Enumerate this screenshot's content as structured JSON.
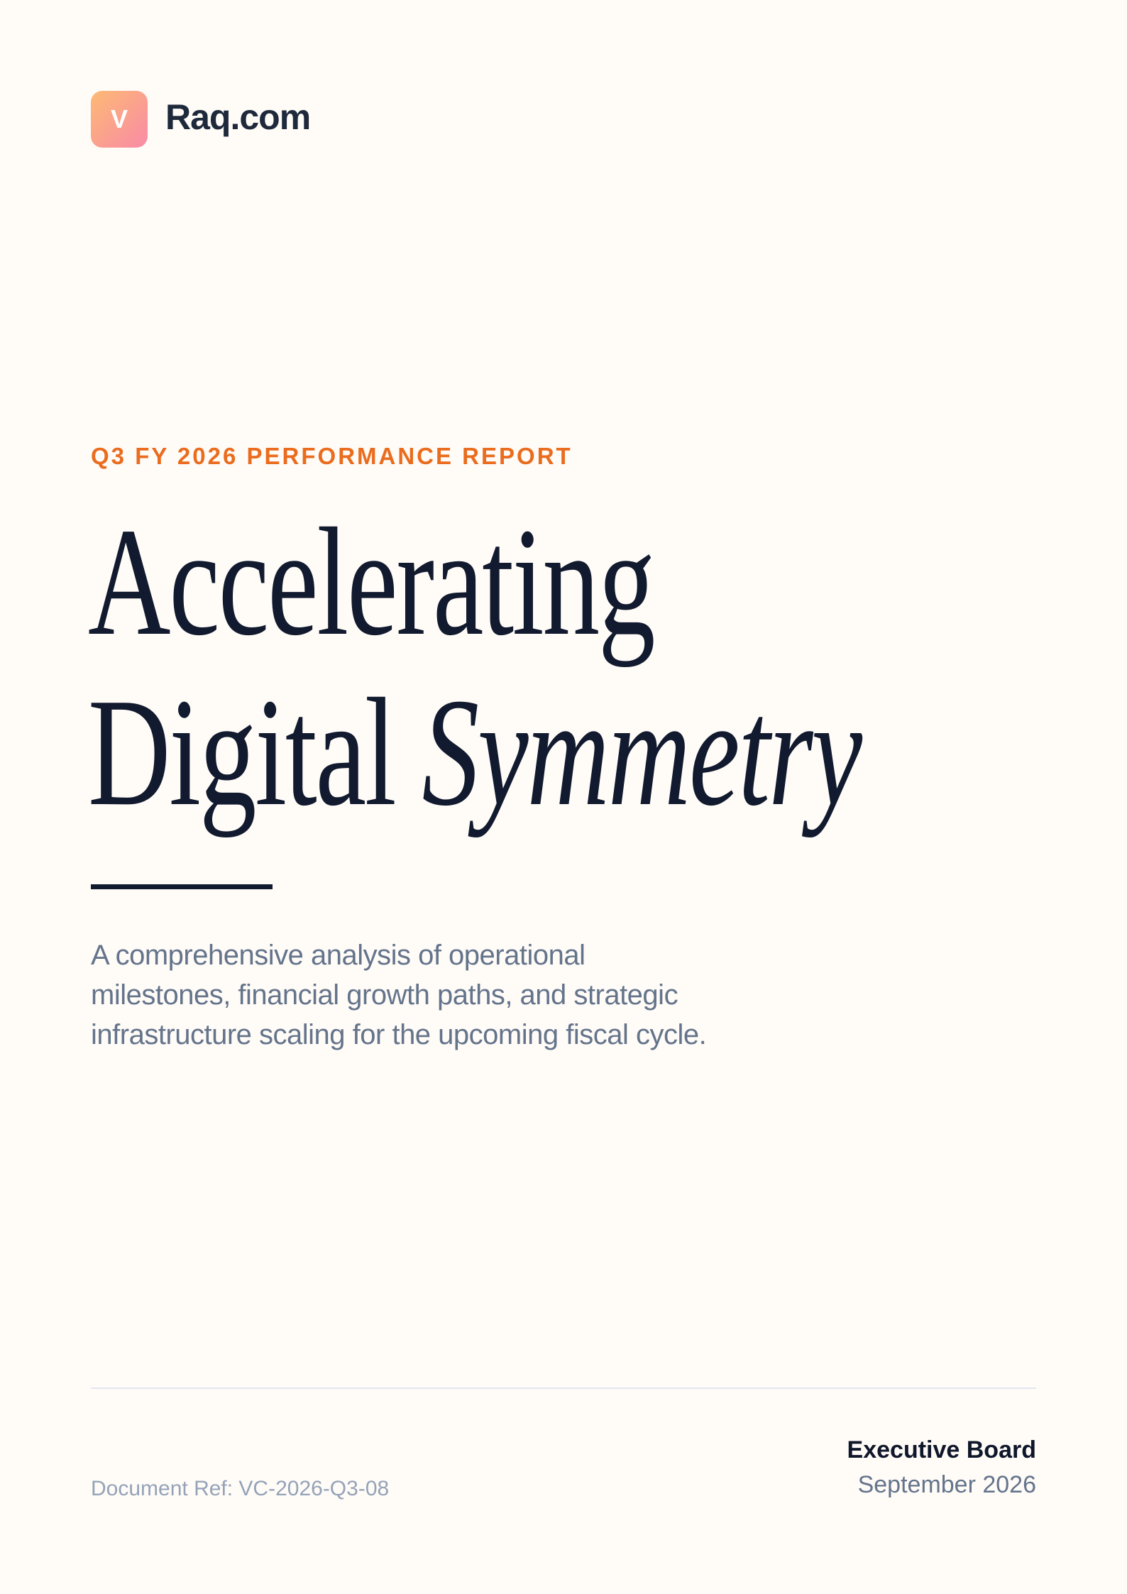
{
  "header": {
    "logo_letter": "V",
    "brand": "Raq.com",
    "logo_gradient": [
      "#fdba74",
      "#f98aa6"
    ]
  },
  "kicker": "Q3 FY 2026 PERFORMANCE REPORT",
  "title": {
    "line1": "Accelerating",
    "line2_regular": "Digital",
    "line2_italic": "Symmetry"
  },
  "subtitle": "A comprehensive analysis of operational milestones, financial growth paths, and strategic infrastructure scaling for the upcoming fiscal cycle.",
  "footer": {
    "document_ref": "Document Ref: VC-2026-Q3-08",
    "audience": "Executive Board",
    "date": "September 2026"
  },
  "colors": {
    "accent": "#ea6c1e",
    "ink": "#111a2e",
    "background": "#fffbf7"
  }
}
